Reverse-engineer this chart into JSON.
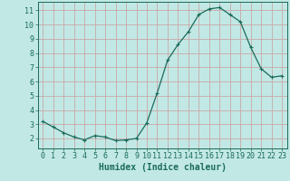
{
  "x": [
    0,
    1,
    2,
    3,
    4,
    5,
    6,
    7,
    8,
    9,
    10,
    11,
    12,
    13,
    14,
    15,
    16,
    17,
    18,
    19,
    20,
    21,
    22,
    23
  ],
  "y": [
    3.2,
    2.8,
    2.4,
    2.1,
    1.9,
    2.2,
    2.1,
    1.85,
    1.9,
    2.0,
    3.1,
    5.2,
    7.5,
    8.6,
    9.5,
    10.7,
    11.1,
    11.2,
    10.7,
    10.2,
    8.4,
    6.9,
    6.3,
    6.4
  ],
  "line_color": "#1a6b5a",
  "marker": "+",
  "marker_size": 3,
  "marker_lw": 0.8,
  "line_width": 0.9,
  "bg_color": "#c2e8e5",
  "grid_color": "#c8a8a8",
  "axis_color": "#1a6b5a",
  "xlabel": "Humidex (Indice chaleur)",
  "xlabel_fontsize": 7,
  "tick_fontsize": 6,
  "ylim": [
    1.3,
    11.6
  ],
  "xlim": [
    -0.5,
    23.5
  ],
  "yticks": [
    2,
    3,
    4,
    5,
    6,
    7,
    8,
    9,
    10,
    11
  ],
  "xticks": [
    0,
    1,
    2,
    3,
    4,
    5,
    6,
    7,
    8,
    9,
    10,
    11,
    12,
    13,
    14,
    15,
    16,
    17,
    18,
    19,
    20,
    21,
    22,
    23
  ]
}
